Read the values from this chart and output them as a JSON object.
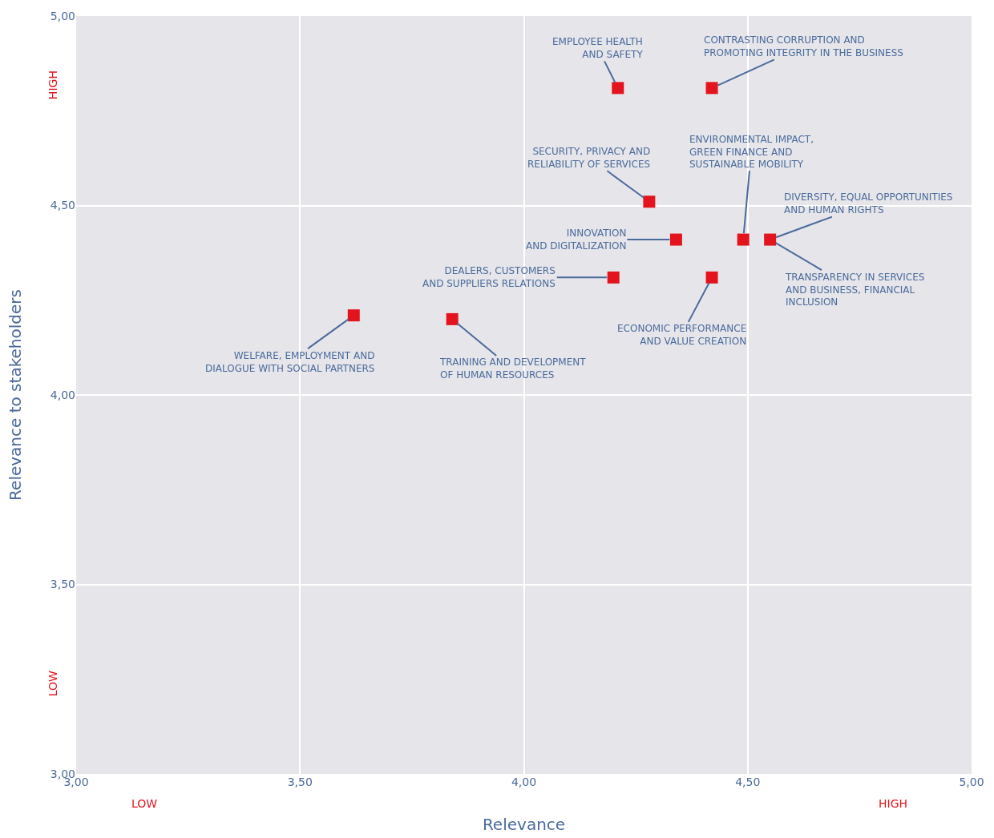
{
  "chart_data": {
    "type": "scatter",
    "xlabel": "Relevance",
    "ylabel": "Relevance to stakeholders",
    "x": [
      4.21,
      4.42,
      4.28,
      4.34,
      4.49,
      4.55,
      4.2,
      4.42,
      3.62,
      3.84
    ],
    "values": [
      4.81,
      4.81,
      4.51,
      4.41,
      4.41,
      4.41,
      4.31,
      4.31,
      4.21,
      4.2
    ],
    "color": "#e3141e",
    "marker": "square",
    "grid": true,
    "legend": false,
    "xlim": [
      3,
      5
    ],
    "ylim": [
      3,
      5
    ],
    "xticks": [
      {
        "value": 3,
        "label": "3,00"
      },
      {
        "value": 3.5,
        "label": "3,50"
      },
      {
        "value": 4,
        "label": "4,00"
      },
      {
        "value": 4.5,
        "label": "4,50"
      },
      {
        "value": 5,
        "label": "5,00"
      }
    ],
    "yticks": [
      {
        "value": 3,
        "label": "3,00"
      },
      {
        "value": 3.5,
        "label": "3,50"
      },
      {
        "value": 4,
        "label": "4,00"
      },
      {
        "value": 4.5,
        "label": "4,50"
      },
      {
        "value": 5,
        "label": "5,00"
      }
    ],
    "annotations": [
      {
        "text": "EMPLOYEE HEALTH\nAND SAFETY",
        "x": 4.21,
        "y": 4.81
      },
      {
        "text": "CONTRASTING CORRUPTION AND\nPROMOTING INTEGRITY IN THE BUSINESS",
        "x": 4.42,
        "y": 4.81
      },
      {
        "text": "SECURITY, PRIVACY AND\nRELIABILITY OF SERVICES",
        "x": 4.28,
        "y": 4.51
      },
      {
        "text": "INNOVATION\nAND DIGITALIZATION",
        "x": 4.34,
        "y": 4.41
      },
      {
        "text": "ENVIRONMENTAL IMPACT,\nGREEN FINANCE AND\nSUSTAINABLE MOBILITY",
        "x": 4.49,
        "y": 4.41
      },
      {
        "text": "DIVERSITY, EQUAL OPPORTUNITIES\nAND HUMAN RIGHTS",
        "x": 4.55,
        "y": 4.41
      },
      {
        "text": "TRANSPARENCY IN SERVICES\nAND BUSINESS, FINANCIAL\nINCLUSION",
        "x": 4.55,
        "y": 4.41
      },
      {
        "text": "DEALERS, CUSTOMERS\nAND SUPPLIERS RELATIONS",
        "x": 4.2,
        "y": 4.31
      },
      {
        "text": "ECONOMIC PERFORMANCE\nAND VALUE CREATION",
        "x": 4.42,
        "y": 4.31
      },
      {
        "text": "WELFARE, EMPLOYMENT AND\nDIALOGUE WITH SOCIAL PARTNERS",
        "x": 3.62,
        "y": 4.21
      },
      {
        "text": "TRAINING AND DEVELOPMENT\nOF HUMAN RESOURCES",
        "x": 3.84,
        "y": 4.2
      },
      "LOW",
      "HIGH",
      "HIGH",
      "LOW"
    ]
  }
}
